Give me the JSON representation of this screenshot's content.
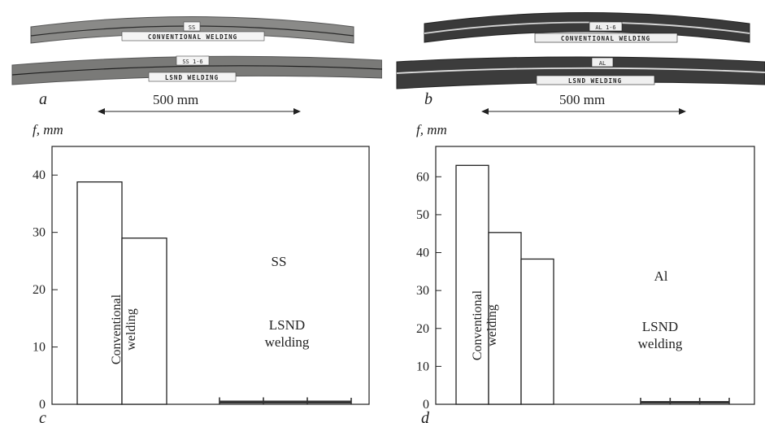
{
  "panels": [
    {
      "photo_label": "a",
      "scale_text": "500 mm",
      "strips": [
        {
          "tag": "SS",
          "label": "CONVENTIONAL WELDING"
        },
        {
          "tag": "SS 1-6",
          "label": "LSND WELDING"
        }
      ]
    },
    {
      "photo_label": "b",
      "scale_text": "500 mm",
      "strips": [
        {
          "tag": "AL 1-6",
          "label": "CONVENTIONAL WELDING"
        },
        {
          "tag": "AL",
          "label": "LSND WELDING"
        }
      ]
    }
  ],
  "chart_data": [
    {
      "type": "bar",
      "panel_label": "c",
      "ylabel": "f, mm",
      "ylim": [
        0,
        45
      ],
      "yticks": [
        0,
        10,
        20,
        30,
        40
      ],
      "material": "SS",
      "groups": [
        {
          "label": "Conventional welding",
          "values": [
            38.8,
            29.0
          ]
        },
        {
          "label": "LSND welding",
          "values": [
            0.5,
            0.5,
            0.5
          ]
        }
      ],
      "grid": false,
      "colors": {
        "bar_fill": "#ffffff",
        "bar_edge": "#222222",
        "lsnd_bar": "#333333"
      }
    },
    {
      "type": "bar",
      "panel_label": "d",
      "ylabel": "f, mm",
      "ylim": [
        0,
        68
      ],
      "yticks": [
        0,
        10,
        20,
        30,
        40,
        50,
        60
      ],
      "material": "Al",
      "groups": [
        {
          "label": "Conventional welding",
          "values": [
            63.0,
            45.3,
            38.3
          ]
        },
        {
          "label": "LSND welding",
          "values": [
            0.5,
            0.5,
            0.5
          ]
        }
      ],
      "grid": false,
      "colors": {
        "bar_fill": "#ffffff",
        "bar_edge": "#222222",
        "lsnd_bar": "#333333"
      }
    }
  ]
}
